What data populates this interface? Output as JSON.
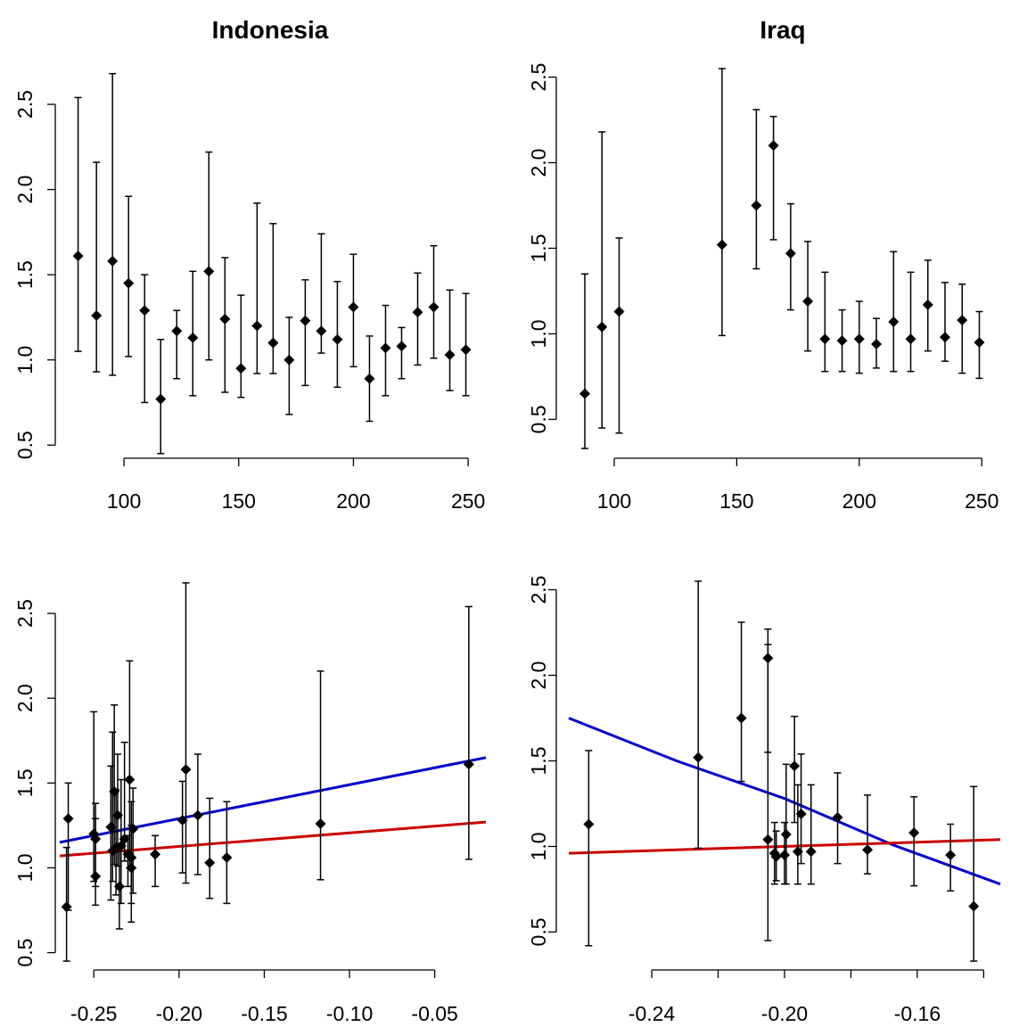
{
  "chart_data": [
    {
      "type": "scatter",
      "title": "Indonesia",
      "xlabel": "",
      "ylabel": "",
      "xlim": [
        72,
        255
      ],
      "ylim": [
        0.47,
        2.72
      ],
      "xticks": [
        100,
        150,
        200,
        250
      ],
      "xtick_labels": [
        "100",
        "150",
        "200",
        "250"
      ],
      "yticks": [
        0.5,
        1.0,
        1.5,
        2.0,
        2.5
      ],
      "ytick_labels": [
        "0.5",
        "1.0",
        "1.5",
        "2.0",
        "2.5"
      ],
      "point_color": "#000000",
      "points": [
        {
          "x": 80,
          "y": 1.61,
          "lo": 1.05,
          "hi": 2.54
        },
        {
          "x": 88,
          "y": 1.26,
          "lo": 0.93,
          "hi": 2.16
        },
        {
          "x": 95,
          "y": 1.58,
          "lo": 0.91,
          "hi": 2.68
        },
        {
          "x": 102,
          "y": 1.45,
          "lo": 1.02,
          "hi": 1.96
        },
        {
          "x": 109,
          "y": 1.29,
          "lo": 0.75,
          "hi": 1.5
        },
        {
          "x": 116,
          "y": 0.77,
          "lo": 0.45,
          "hi": 1.12
        },
        {
          "x": 123,
          "y": 1.17,
          "lo": 0.89,
          "hi": 1.29
        },
        {
          "x": 130,
          "y": 1.13,
          "lo": 0.79,
          "hi": 1.52
        },
        {
          "x": 137,
          "y": 1.52,
          "lo": 1.0,
          "hi": 2.22
        },
        {
          "x": 144,
          "y": 1.24,
          "lo": 0.81,
          "hi": 1.6
        },
        {
          "x": 151,
          "y": 0.95,
          "lo": 0.78,
          "hi": 1.38
        },
        {
          "x": 158,
          "y": 1.2,
          "lo": 0.92,
          "hi": 1.92
        },
        {
          "x": 165,
          "y": 1.1,
          "lo": 0.92,
          "hi": 1.8
        },
        {
          "x": 172,
          "y": 1.0,
          "lo": 0.68,
          "hi": 1.25
        },
        {
          "x": 179,
          "y": 1.23,
          "lo": 0.85,
          "hi": 1.47
        },
        {
          "x": 186,
          "y": 1.17,
          "lo": 1.04,
          "hi": 1.74
        },
        {
          "x": 193,
          "y": 1.12,
          "lo": 0.84,
          "hi": 1.46
        },
        {
          "x": 200,
          "y": 1.31,
          "lo": 0.96,
          "hi": 1.62
        },
        {
          "x": 207,
          "y": 0.89,
          "lo": 0.64,
          "hi": 1.14
        },
        {
          "x": 214,
          "y": 1.07,
          "lo": 0.79,
          "hi": 1.32
        },
        {
          "x": 221,
          "y": 1.08,
          "lo": 0.89,
          "hi": 1.19
        },
        {
          "x": 228,
          "y": 1.28,
          "lo": 0.97,
          "hi": 1.51
        },
        {
          "x": 235,
          "y": 1.31,
          "lo": 1.01,
          "hi": 1.67
        },
        {
          "x": 242,
          "y": 1.03,
          "lo": 0.82,
          "hi": 1.41
        },
        {
          "x": 249,
          "y": 1.06,
          "lo": 0.79,
          "hi": 1.39
        }
      ]
    },
    {
      "type": "scatter",
      "title": "Iraq",
      "xlabel": "",
      "ylabel": "",
      "xlim": [
        84,
        255
      ],
      "ylim": [
        0.32,
        2.56
      ],
      "xticks": [
        100,
        150,
        200,
        250
      ],
      "xtick_labels": [
        "100",
        "150",
        "200",
        "250"
      ],
      "yticks": [
        0.5,
        1.0,
        1.5,
        2.0,
        2.5
      ],
      "ytick_labels": [
        "0.5",
        "1.0",
        "1.5",
        "2.0",
        "2.5"
      ],
      "point_color": "#000000",
      "points": [
        {
          "x": 88,
          "y": 0.65,
          "lo": 0.33,
          "hi": 1.35
        },
        {
          "x": 95,
          "y": 1.04,
          "lo": 0.45,
          "hi": 2.18
        },
        {
          "x": 102,
          "y": 1.13,
          "lo": 0.42,
          "hi": 1.56
        },
        {
          "x": 144,
          "y": 1.52,
          "lo": 0.99,
          "hi": 2.55
        },
        {
          "x": 158,
          "y": 1.75,
          "lo": 1.38,
          "hi": 2.31
        },
        {
          "x": 165,
          "y": 2.1,
          "lo": 1.55,
          "hi": 2.27
        },
        {
          "x": 172,
          "y": 1.47,
          "lo": 1.14,
          "hi": 1.76
        },
        {
          "x": 179,
          "y": 1.19,
          "lo": 0.9,
          "hi": 1.54
        },
        {
          "x": 186,
          "y": 0.97,
          "lo": 0.78,
          "hi": 1.36
        },
        {
          "x": 193,
          "y": 0.96,
          "lo": 0.78,
          "hi": 1.14
        },
        {
          "x": 200,
          "y": 0.97,
          "lo": 0.77,
          "hi": 1.19
        },
        {
          "x": 207,
          "y": 0.94,
          "lo": 0.8,
          "hi": 1.09
        },
        {
          "x": 214,
          "y": 1.07,
          "lo": 0.78,
          "hi": 1.48
        },
        {
          "x": 221,
          "y": 0.97,
          "lo": 0.78,
          "hi": 1.36
        },
        {
          "x": 228,
          "y": 1.17,
          "lo": 0.9,
          "hi": 1.43
        },
        {
          "x": 235,
          "y": 0.98,
          "lo": 0.84,
          "hi": 1.3
        },
        {
          "x": 242,
          "y": 1.08,
          "lo": 0.77,
          "hi": 1.29
        },
        {
          "x": 249,
          "y": 0.95,
          "lo": 0.74,
          "hi": 1.13
        }
      ]
    },
    {
      "type": "scatter",
      "title": "",
      "xlabel": "",
      "ylabel": "",
      "xlim": [
        -0.27,
        -0.02
      ],
      "ylim": [
        0.44,
        2.7
      ],
      "xticks": [
        -0.25,
        -0.2,
        -0.15,
        -0.1,
        -0.05
      ],
      "xtick_labels": [
        "-0.25",
        "-0.20",
        "-0.15",
        "-0.10",
        "-0.05"
      ],
      "yticks": [
        0.5,
        1.0,
        1.5,
        2.0,
        2.5
      ],
      "ytick_labels": [
        "0.5",
        "1.0",
        "1.5",
        "2.0",
        "2.5"
      ],
      "point_color": "#000000",
      "points": [
        {
          "x": -0.266,
          "y": 0.77,
          "lo": 0.45,
          "hi": 1.12
        },
        {
          "x": -0.265,
          "y": 1.29,
          "lo": 0.75,
          "hi": 1.5
        },
        {
          "x": -0.25,
          "y": 1.2,
          "lo": 0.92,
          "hi": 1.92
        },
        {
          "x": -0.249,
          "y": 1.17,
          "lo": 0.89,
          "hi": 1.29
        },
        {
          "x": -0.249,
          "y": 0.95,
          "lo": 0.78,
          "hi": 1.38
        },
        {
          "x": -0.24,
          "y": 1.24,
          "lo": 0.81,
          "hi": 1.6
        },
        {
          "x": -0.239,
          "y": 1.1,
          "lo": 0.92,
          "hi": 1.8
        },
        {
          "x": -0.238,
          "y": 1.45,
          "lo": 1.02,
          "hi": 1.96
        },
        {
          "x": -0.237,
          "y": 1.12,
          "lo": 0.84,
          "hi": 1.46
        },
        {
          "x": -0.236,
          "y": 1.31,
          "lo": 1.01,
          "hi": 1.67
        },
        {
          "x": -0.235,
          "y": 0.89,
          "lo": 0.64,
          "hi": 1.14
        },
        {
          "x": -0.234,
          "y": 1.13,
          "lo": 0.79,
          "hi": 1.52
        },
        {
          "x": -0.232,
          "y": 1.17,
          "lo": 1.04,
          "hi": 1.74
        },
        {
          "x": -0.23,
          "y": 1.08,
          "lo": 0.89,
          "hi": 1.19
        },
        {
          "x": -0.229,
          "y": 1.52,
          "lo": 1.0,
          "hi": 2.22
        },
        {
          "x": -0.228,
          "y": 1.06,
          "lo": 0.79,
          "hi": 1.39
        },
        {
          "x": -0.228,
          "y": 1.0,
          "lo": 0.68,
          "hi": 1.25
        },
        {
          "x": -0.227,
          "y": 1.23,
          "lo": 0.85,
          "hi": 1.47
        },
        {
          "x": -0.214,
          "y": 1.08,
          "lo": 0.89,
          "hi": 1.19
        },
        {
          "x": -0.198,
          "y": 1.28,
          "lo": 0.97,
          "hi": 1.51
        },
        {
          "x": -0.196,
          "y": 1.58,
          "lo": 0.91,
          "hi": 2.68
        },
        {
          "x": -0.189,
          "y": 1.31,
          "lo": 0.96,
          "hi": 1.67
        },
        {
          "x": -0.182,
          "y": 1.03,
          "lo": 0.82,
          "hi": 1.41
        },
        {
          "x": -0.172,
          "y": 1.06,
          "lo": 0.79,
          "hi": 1.39
        },
        {
          "x": -0.117,
          "y": 1.26,
          "lo": 0.93,
          "hi": 2.16
        },
        {
          "x": -0.03,
          "y": 1.61,
          "lo": 1.05,
          "hi": 2.54
        }
      ],
      "fit_lines": [
        {
          "color": "#0000cc",
          "x": [
            -0.27,
            -0.02
          ],
          "y": [
            1.15,
            1.65
          ]
        },
        {
          "color": "#cc0000",
          "x": [
            -0.27,
            -0.02
          ],
          "y": [
            1.07,
            1.27
          ]
        }
      ]
    },
    {
      "type": "scatter",
      "title": "",
      "xlabel": "",
      "ylabel": "",
      "xlim": [
        -0.265,
        -0.135
      ],
      "ylim": [
        0.32,
        2.56
      ],
      "xticks": [
        -0.24,
        -0.22,
        -0.2,
        -0.18,
        -0.16,
        -0.14
      ],
      "xtick_labels": [
        "-0.24",
        "",
        "-0.20",
        "",
        "-0.16",
        ""
      ],
      "yticks": [
        0.5,
        1.0,
        1.5,
        2.0,
        2.5
      ],
      "ytick_labels": [
        "0.5",
        "1.0",
        "1.5",
        "2.0",
        "2.5"
      ],
      "point_color": "#000000",
      "points": [
        {
          "x": -0.259,
          "y": 1.13,
          "lo": 0.42,
          "hi": 1.56
        },
        {
          "x": -0.226,
          "y": 1.52,
          "lo": 0.99,
          "hi": 2.55
        },
        {
          "x": -0.213,
          "y": 1.75,
          "lo": 1.38,
          "hi": 2.31
        },
        {
          "x": -0.205,
          "y": 2.1,
          "lo": 1.55,
          "hi": 2.27
        },
        {
          "x": -0.205,
          "y": 1.04,
          "lo": 0.45,
          "hi": 2.18
        },
        {
          "x": -0.203,
          "y": 0.96,
          "lo": 0.78,
          "hi": 1.14
        },
        {
          "x": -0.2025,
          "y": 0.94,
          "lo": 0.8,
          "hi": 1.09
        },
        {
          "x": -0.2,
          "y": 0.95,
          "lo": 0.78,
          "hi": 1.14
        },
        {
          "x": -0.1995,
          "y": 1.07,
          "lo": 0.78,
          "hi": 1.48
        },
        {
          "x": -0.197,
          "y": 1.47,
          "lo": 1.14,
          "hi": 1.76
        },
        {
          "x": -0.196,
          "y": 0.97,
          "lo": 0.78,
          "hi": 1.36
        },
        {
          "x": -0.195,
          "y": 1.19,
          "lo": 0.9,
          "hi": 1.54
        },
        {
          "x": -0.192,
          "y": 0.97,
          "lo": 0.78,
          "hi": 1.36
        },
        {
          "x": -0.184,
          "y": 1.17,
          "lo": 0.9,
          "hi": 1.43
        },
        {
          "x": -0.175,
          "y": 0.98,
          "lo": 0.84,
          "hi": 1.3
        },
        {
          "x": -0.161,
          "y": 1.08,
          "lo": 0.77,
          "hi": 1.29
        },
        {
          "x": -0.15,
          "y": 0.95,
          "lo": 0.74,
          "hi": 1.13
        },
        {
          "x": -0.143,
          "y": 0.65,
          "lo": 0.33,
          "hi": 1.35
        }
      ],
      "fit_lines": [
        {
          "color": "#0000cc",
          "x": [
            -0.265,
            -0.2325,
            -0.2,
            -0.1675,
            -0.135
          ],
          "y": [
            1.75,
            1.5,
            1.28,
            1.01,
            0.78
          ]
        },
        {
          "color": "#cc0000",
          "x": [
            -0.265,
            -0.135
          ],
          "y": [
            0.96,
            1.04
          ]
        }
      ]
    }
  ]
}
